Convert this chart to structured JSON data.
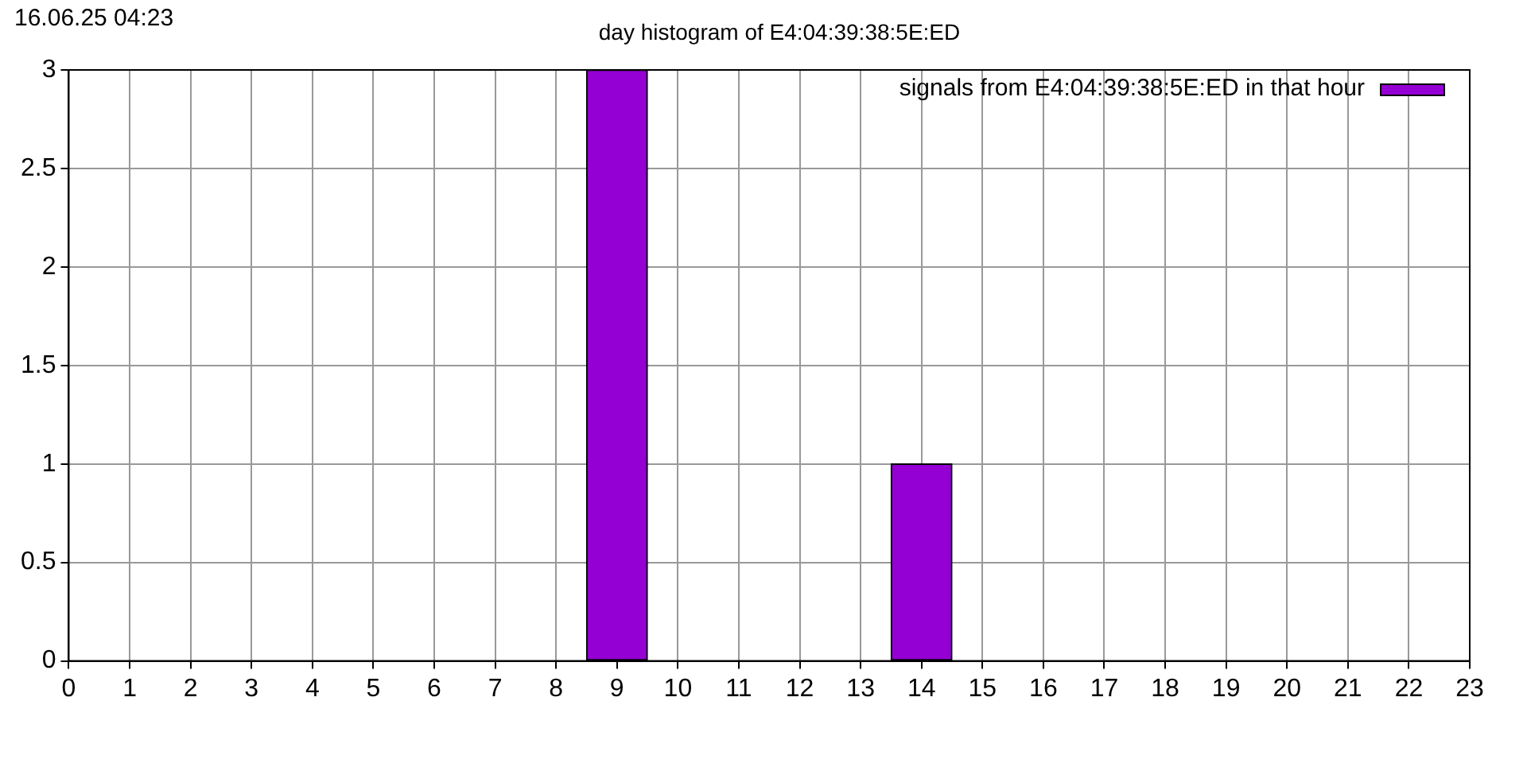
{
  "chart_data": {
    "type": "bar",
    "title": "day histogram of E4:04:39:38:5E:ED",
    "annotations": [
      "16.06.25 04:23"
    ],
    "x": [
      9,
      14
    ],
    "series": [
      {
        "name": "signals from E4:04:39:38:5E:ED in that hour",
        "color": "#9400d3",
        "values": [
          3,
          1
        ]
      }
    ],
    "xlim": [
      0,
      23
    ],
    "xticks": [
      0,
      1,
      2,
      3,
      4,
      5,
      6,
      7,
      8,
      9,
      10,
      11,
      12,
      13,
      14,
      15,
      16,
      17,
      18,
      19,
      20,
      21,
      22,
      23
    ],
    "ylim": [
      0,
      3
    ],
    "yticks": [
      0,
      0.5,
      1,
      1.5,
      2,
      2.5,
      3
    ],
    "grid": true,
    "legend": "top right"
  }
}
